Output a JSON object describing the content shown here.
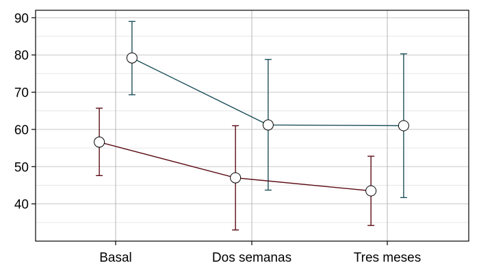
{
  "chart_data": {
    "type": "line",
    "title": "",
    "xlabel": "",
    "ylabel": "",
    "categories": [
      "Basal",
      "Dos semanas",
      "Tres meses"
    ],
    "ylim": [
      30,
      92
    ],
    "yticks": [
      40,
      50,
      60,
      70,
      80,
      90
    ],
    "yminor": [
      35,
      45,
      55,
      65,
      75,
      85
    ],
    "grid": true,
    "legend": "none",
    "series": [
      {
        "color": "#1b4f5a",
        "offset": 0.12,
        "values": [
          79.2,
          61.2,
          61.0
        ],
        "lower": [
          69.3,
          43.7,
          41.7
        ],
        "upper": [
          89.0,
          78.8,
          80.3
        ]
      },
      {
        "color": "#5a0a14",
        "offset": -0.12,
        "values": [
          56.6,
          47.0,
          43.5
        ],
        "lower": [
          47.6,
          33.0,
          34.2
        ],
        "upper": [
          65.7,
          61.0,
          52.8
        ]
      }
    ]
  }
}
